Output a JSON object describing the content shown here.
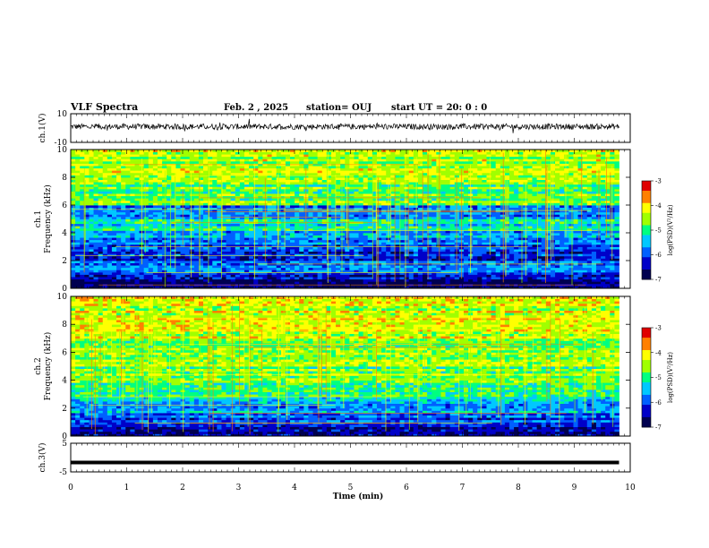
{
  "header": {
    "title": "VLF Spectra",
    "date": "Feb. 2  , 2025",
    "station": "station= OUJ",
    "start": "start  UT =   20: 0  : 0"
  },
  "colors": {
    "colormap": [
      "#000050",
      "#0000c8",
      "#0060ff",
      "#00c8ff",
      "#00ff80",
      "#a0ff00",
      "#ffff00",
      "#ff8000",
      "#e00000"
    ],
    "trace": "#000000"
  },
  "chart_data": [
    {
      "type": "line",
      "name": "ch1-waveform",
      "ylabel": "ch.1(V)",
      "yticks": [
        "10",
        "-10"
      ],
      "ylim": [
        -10,
        10
      ],
      "xlim": [
        0,
        10
      ],
      "description_values": {
        "mean_level": 1,
        "noise_amplitude": 2
      },
      "data_end": 9.8
    },
    {
      "type": "heatmap",
      "name": "ch1-spectrogram",
      "ylabel": "ch.1\nFrequency (kHz)",
      "yticks": [
        "0",
        "2",
        "4",
        "6",
        "8",
        "10"
      ],
      "ylim": [
        0,
        10
      ],
      "xlim": [
        0,
        10
      ],
      "data_end": 9.8,
      "colorbar": {
        "label": "log(PSD)(V²/Hz)",
        "ticks": [
          "-3",
          "-4",
          "-5",
          "-6",
          "-7"
        ],
        "range": [
          -7,
          -3
        ]
      },
      "bands": [
        {
          "from": 0,
          "to": 0.6,
          "level": -6.8
        },
        {
          "from": 0.6,
          "to": 1.2,
          "level": -6.3
        },
        {
          "from": 1.2,
          "to": 2.0,
          "level": -5.8
        },
        {
          "from": 2.0,
          "to": 3.2,
          "level": -6.2
        },
        {
          "from": 3.2,
          "to": 4.2,
          "level": -5.6
        },
        {
          "from": 4.2,
          "to": 5.0,
          "level": -5.3
        },
        {
          "from": 5.0,
          "to": 6.0,
          "level": -5.8
        },
        {
          "from": 6.0,
          "to": 7.5,
          "level": -4.8
        },
        {
          "from": 7.5,
          "to": 10,
          "level": -4.5
        }
      ]
    },
    {
      "type": "heatmap",
      "name": "ch2-spectrogram",
      "ylabel": "ch.2\nFrequency (kHz)",
      "yticks": [
        "0",
        "2",
        "4",
        "6",
        "8",
        "10"
      ],
      "ylim": [
        0,
        10
      ],
      "xlim": [
        0,
        10
      ],
      "data_end": 9.8,
      "colorbar": {
        "label": "log(PSD)(V²/Hz)",
        "ticks": [
          "-3",
          "-4",
          "-5",
          "-6",
          "-7"
        ],
        "range": [
          -7,
          -3
        ]
      },
      "bands": [
        {
          "from": 0,
          "to": 0.8,
          "level": -6.4
        },
        {
          "from": 0.8,
          "to": 1.6,
          "level": -6.0
        },
        {
          "from": 1.6,
          "to": 2.6,
          "level": -5.5
        },
        {
          "from": 2.6,
          "to": 3.6,
          "level": -5.0
        },
        {
          "from": 3.6,
          "to": 5.0,
          "level": -4.7
        },
        {
          "from": 5.0,
          "to": 7.0,
          "level": -4.6
        },
        {
          "from": 7.0,
          "to": 10,
          "level": -4.3
        }
      ]
    },
    {
      "type": "line",
      "name": "ch3-waveform",
      "ylabel": "ch.3(V)",
      "yticks": [
        "5",
        "-5"
      ],
      "ylim": [
        -5,
        5
      ],
      "xlim": [
        0,
        10
      ],
      "constant_value": -1.7,
      "data_end": 9.8
    }
  ],
  "xaxis": {
    "label": "Time (min)",
    "ticks": [
      "0",
      "1",
      "2",
      "3",
      "4",
      "5",
      "6",
      "7",
      "8",
      "9",
      "10"
    ]
  }
}
